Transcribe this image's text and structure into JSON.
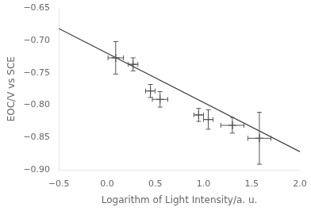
{
  "chart_data": {
    "type": "scatter",
    "xlabel": "Logarithm of Light Intensity/a. u.",
    "ylabel": "EOC/V vs SCE",
    "series": [
      {
        "type": "scatter",
        "marker": "+",
        "color": "#555555",
        "x": [
          0.09,
          0.27,
          0.45,
          0.55,
          0.95,
          1.05,
          1.3,
          1.58
        ],
        "values": [
          -0.727,
          -0.737,
          -0.778,
          -0.791,
          -0.815,
          -0.822,
          -0.831,
          -0.851
        ],
        "x_err": [
          0.08,
          0.05,
          0.05,
          0.08,
          0.05,
          0.05,
          0.12,
          0.12
        ],
        "y_err": [
          0.025,
          0.01,
          0.01,
          0.012,
          0.01,
          0.015,
          0.012,
          0.04
        ]
      },
      {
        "type": "line",
        "line_style": "solid",
        "color": "#333333",
        "x": [
          -0.5,
          2.0
        ],
        "values": [
          -0.6817,
          -0.8717
        ]
      }
    ],
    "xlim": [
      -0.5,
      2.0
    ],
    "ylim": [
      -0.9,
      -0.65
    ],
    "xticks": [
      {
        "value": -0.5,
        "label": "−0.5"
      },
      {
        "value": 0.0,
        "label": "0.0"
      },
      {
        "value": 0.5,
        "label": "0.5"
      },
      {
        "value": 1.0,
        "label": "1.0"
      },
      {
        "value": 1.5,
        "label": "1.5"
      },
      {
        "value": 2.0,
        "label": "2.0"
      }
    ],
    "yticks": [
      {
        "value": -0.9,
        "label": "−0.90"
      },
      {
        "value": -0.85,
        "label": "−0.85"
      },
      {
        "value": -0.8,
        "label": "−0.80"
      },
      {
        "value": -0.75,
        "label": "−0.75"
      },
      {
        "value": -0.7,
        "label": "−0.70"
      },
      {
        "value": -0.65,
        "label": "−0.65"
      }
    ],
    "grid": false
  }
}
